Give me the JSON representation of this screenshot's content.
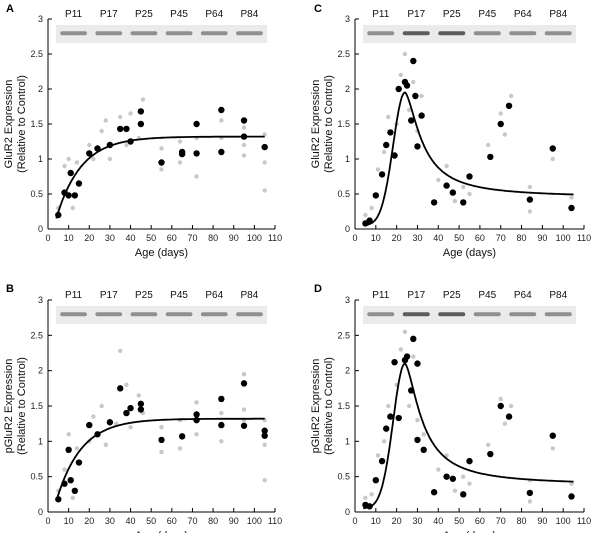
{
  "chart_data": [
    {
      "panel": "A",
      "type": "scatter",
      "xlabel": "Age (days)",
      "ylabel": [
        "GluR2 Expression",
        "(Relative to Control)"
      ],
      "xlim": [
        0,
        110
      ],
      "ylim": [
        0,
        3
      ],
      "xticks": [
        0,
        10,
        20,
        30,
        40,
        50,
        60,
        70,
        80,
        90,
        100,
        110
      ],
      "yticks": [
        0,
        0.5,
        1,
        1.5,
        2,
        2.5,
        3
      ],
      "blot_labels": [
        "P11",
        "P17",
        "P25",
        "P45",
        "P64",
        "P84"
      ],
      "curve_type": "saturating",
      "means": [
        [
          5,
          0.2
        ],
        [
          8,
          0.52
        ],
        [
          10,
          0.48
        ],
        [
          11,
          0.8
        ],
        [
          13,
          0.48
        ],
        [
          15,
          0.65
        ],
        [
          20,
          1.08
        ],
        [
          24,
          1.15
        ],
        [
          30,
          1.2
        ],
        [
          35,
          1.43
        ],
        [
          38,
          1.43
        ],
        [
          40,
          1.25
        ],
        [
          45,
          1.68
        ],
        [
          45,
          1.5
        ],
        [
          55,
          0.95
        ],
        [
          65,
          1.07
        ],
        [
          65,
          1.1
        ],
        [
          72,
          1.5
        ],
        [
          72,
          1.08
        ],
        [
          84,
          1.7
        ],
        [
          84,
          1.1
        ],
        [
          95,
          1.55
        ],
        [
          95,
          1.32
        ],
        [
          105,
          1.17
        ]
      ],
      "replicates": [
        [
          5,
          0.3
        ],
        [
          8,
          0.9
        ],
        [
          10,
          1.0
        ],
        [
          12,
          0.3
        ],
        [
          14,
          0.95
        ],
        [
          20,
          1.2
        ],
        [
          22,
          1.0
        ],
        [
          26,
          1.4
        ],
        [
          28,
          1.55
        ],
        [
          30,
          1.0
        ],
        [
          35,
          1.6
        ],
        [
          38,
          1.2
        ],
        [
          40,
          1.65
        ],
        [
          44,
          1.3
        ],
        [
          46,
          1.85
        ],
        [
          55,
          0.85
        ],
        [
          55,
          1.15
        ],
        [
          64,
          1.25
        ],
        [
          64,
          0.95
        ],
        [
          72,
          1.3
        ],
        [
          72,
          0.75
        ],
        [
          84,
          1.55
        ],
        [
          84,
          1.3
        ],
        [
          95,
          1.2
        ],
        [
          95,
          1.45
        ],
        [
          95,
          1.05
        ],
        [
          105,
          0.55
        ],
        [
          105,
          1.35
        ],
        [
          105,
          0.95
        ]
      ]
    },
    {
      "panel": "B",
      "type": "scatter",
      "xlabel": "Age (days)",
      "ylabel": [
        "pGluR2 Expression",
        "(Relative to Control)"
      ],
      "xlim": [
        0,
        110
      ],
      "ylim": [
        0,
        3
      ],
      "xticks": [
        0,
        10,
        20,
        30,
        40,
        50,
        60,
        70,
        80,
        90,
        100,
        110
      ],
      "yticks": [
        0,
        0.5,
        1,
        1.5,
        2,
        2.5,
        3
      ],
      "blot_labels": [
        "P11",
        "P17",
        "P25",
        "P45",
        "P64",
        "P84"
      ],
      "curve_type": "saturating",
      "means": [
        [
          5,
          0.18
        ],
        [
          8,
          0.4
        ],
        [
          10,
          0.88
        ],
        [
          11,
          0.45
        ],
        [
          13,
          0.3
        ],
        [
          15,
          0.7
        ],
        [
          20,
          1.23
        ],
        [
          24,
          1.1
        ],
        [
          30,
          1.27
        ],
        [
          35,
          1.75
        ],
        [
          38,
          1.4
        ],
        [
          40,
          1.47
        ],
        [
          45,
          1.53
        ],
        [
          45,
          1.45
        ],
        [
          55,
          1.02
        ],
        [
          65,
          1.07
        ],
        [
          72,
          1.38
        ],
        [
          72,
          1.3
        ],
        [
          84,
          1.6
        ],
        [
          84,
          1.23
        ],
        [
          95,
          1.82
        ],
        [
          95,
          1.22
        ],
        [
          105,
          1.15
        ],
        [
          105,
          1.08
        ]
      ],
      "replicates": [
        [
          5,
          0.3
        ],
        [
          8,
          0.6
        ],
        [
          10,
          1.1
        ],
        [
          12,
          0.2
        ],
        [
          14,
          0.9
        ],
        [
          20,
          1.0
        ],
        [
          22,
          1.35
        ],
        [
          26,
          1.5
        ],
        [
          28,
          0.95
        ],
        [
          33,
          1.25
        ],
        [
          35,
          2.28
        ],
        [
          38,
          1.8
        ],
        [
          40,
          1.2
        ],
        [
          44,
          1.65
        ],
        [
          46,
          1.4
        ],
        [
          55,
          0.85
        ],
        [
          55,
          1.2
        ],
        [
          64,
          1.3
        ],
        [
          64,
          0.9
        ],
        [
          72,
          1.55
        ],
        [
          72,
          1.1
        ],
        [
          84,
          1.4
        ],
        [
          84,
          1.0
        ],
        [
          95,
          1.95
        ],
        [
          95,
          1.45
        ],
        [
          95,
          1.3
        ],
        [
          105,
          0.45
        ],
        [
          105,
          1.3
        ],
        [
          105,
          0.95
        ]
      ]
    },
    {
      "panel": "C",
      "type": "scatter",
      "xlabel": "Age (days)",
      "ylabel": [
        "GluR2 Expression",
        "(Relative to Control)"
      ],
      "xlim": [
        0,
        110
      ],
      "ylim": [
        0,
        3
      ],
      "xticks": [
        0,
        10,
        20,
        30,
        40,
        50,
        60,
        70,
        80,
        90,
        100,
        110
      ],
      "yticks": [
        0,
        0.5,
        1,
        1.5,
        2,
        2.5,
        3
      ],
      "blot_labels": [
        "P11",
        "P17",
        "P25",
        "P45",
        "P64",
        "P84"
      ],
      "curve_type": "peak",
      "means": [
        [
          5,
          0.08
        ],
        [
          7,
          0.12
        ],
        [
          10,
          0.48
        ],
        [
          13,
          0.78
        ],
        [
          15,
          1.2
        ],
        [
          17,
          1.38
        ],
        [
          19,
          1.05
        ],
        [
          21,
          2.0
        ],
        [
          24,
          2.1
        ],
        [
          25,
          2.05
        ],
        [
          27,
          1.55
        ],
        [
          28,
          2.4
        ],
        [
          29,
          1.9
        ],
        [
          30,
          1.18
        ],
        [
          32,
          1.62
        ],
        [
          38,
          0.38
        ],
        [
          44,
          0.62
        ],
        [
          47,
          0.52
        ],
        [
          52,
          0.38
        ],
        [
          55,
          0.75
        ],
        [
          65,
          1.03
        ],
        [
          70,
          1.5
        ],
        [
          74,
          1.76
        ],
        [
          84,
          0.42
        ],
        [
          95,
          1.15
        ],
        [
          104,
          0.3
        ]
      ],
      "replicates": [
        [
          5,
          0.2
        ],
        [
          8,
          0.3
        ],
        [
          11,
          0.85
        ],
        [
          14,
          1.1
        ],
        [
          16,
          1.6
        ],
        [
          20,
          1.5
        ],
        [
          22,
          2.2
        ],
        [
          24,
          2.5
        ],
        [
          26,
          1.7
        ],
        [
          28,
          2.1
        ],
        [
          30,
          1.4
        ],
        [
          32,
          1.9
        ],
        [
          40,
          0.7
        ],
        [
          44,
          0.9
        ],
        [
          48,
          0.4
        ],
        [
          52,
          0.6
        ],
        [
          55,
          0.5
        ],
        [
          64,
          1.2
        ],
        [
          70,
          1.65
        ],
        [
          72,
          1.35
        ],
        [
          75,
          1.9
        ],
        [
          84,
          0.6
        ],
        [
          84,
          0.25
        ],
        [
          95,
          1.0
        ],
        [
          104,
          0.45
        ]
      ]
    },
    {
      "panel": "D",
      "type": "scatter",
      "xlabel": "Age (days)",
      "ylabel": [
        "pGluR2 Expression",
        "(Relative to Control)"
      ],
      "xlim": [
        0,
        110
      ],
      "ylim": [
        0,
        3
      ],
      "xticks": [
        0,
        10,
        20,
        30,
        40,
        50,
        60,
        70,
        80,
        90,
        100,
        110
      ],
      "yticks": [
        0,
        0.5,
        1,
        1.5,
        2,
        2.5,
        3
      ],
      "blot_labels": [
        "P11",
        "P17",
        "P25",
        "P45",
        "P64",
        "P84"
      ],
      "curve_type": "peak",
      "means": [
        [
          5,
          0.1
        ],
        [
          7,
          0.08
        ],
        [
          10,
          0.45
        ],
        [
          13,
          0.72
        ],
        [
          15,
          1.18
        ],
        [
          17,
          1.35
        ],
        [
          19,
          2.12
        ],
        [
          21,
          1.33
        ],
        [
          24,
          2.15
        ],
        [
          25,
          2.2
        ],
        [
          27,
          1.72
        ],
        [
          28,
          2.45
        ],
        [
          30,
          1.02
        ],
        [
          30,
          2.1
        ],
        [
          33,
          0.88
        ],
        [
          38,
          0.28
        ],
        [
          44,
          0.5
        ],
        [
          47,
          0.47
        ],
        [
          52,
          0.25
        ],
        [
          55,
          0.72
        ],
        [
          65,
          0.82
        ],
        [
          70,
          1.5
        ],
        [
          74,
          1.35
        ],
        [
          84,
          0.27
        ],
        [
          95,
          1.08
        ],
        [
          104,
          0.22
        ]
      ],
      "replicates": [
        [
          5,
          0.2
        ],
        [
          8,
          0.25
        ],
        [
          11,
          0.8
        ],
        [
          14,
          1.0
        ],
        [
          16,
          1.5
        ],
        [
          20,
          1.8
        ],
        [
          22,
          2.3
        ],
        [
          24,
          2.55
        ],
        [
          26,
          1.5
        ],
        [
          28,
          2.2
        ],
        [
          30,
          1.3
        ],
        [
          33,
          1.1
        ],
        [
          40,
          0.6
        ],
        [
          44,
          0.8
        ],
        [
          48,
          0.3
        ],
        [
          52,
          0.5
        ],
        [
          55,
          0.4
        ],
        [
          64,
          0.95
        ],
        [
          70,
          1.6
        ],
        [
          72,
          1.25
        ],
        [
          75,
          1.5
        ],
        [
          84,
          0.45
        ],
        [
          84,
          0.15
        ],
        [
          95,
          0.9
        ],
        [
          104,
          0.4
        ]
      ]
    }
  ],
  "colors": {
    "mean": "#000000",
    "replicate": "#c8c8c8",
    "curve": "#000000",
    "blot_bg": "#ebebeb",
    "band": "#444444"
  }
}
